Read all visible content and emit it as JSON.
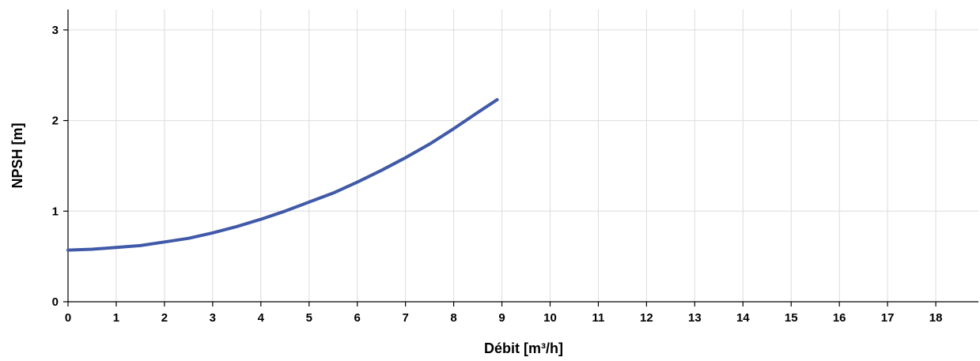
{
  "chart_data": {
    "type": "line",
    "title": "",
    "xlabel": "Débit [m³/h]",
    "ylabel": "NPSH [m]",
    "xlim": [
      0,
      19
    ],
    "ylim": [
      0,
      3.2
    ],
    "xticks": [
      0,
      1,
      2,
      3,
      4,
      5,
      6,
      7,
      8,
      9,
      10,
      11,
      12,
      13,
      14,
      15,
      16,
      17,
      18
    ],
    "yticks": [
      0,
      1,
      2,
      3
    ],
    "grid": true,
    "legend": "none",
    "series": [
      {
        "color": "#4059a8",
        "x": [
          0,
          0.5,
          1,
          1.5,
          2,
          2.5,
          3,
          3.5,
          4,
          4.5,
          5,
          5.5,
          6,
          6.5,
          7,
          7.5,
          8,
          8.5,
          8.9
        ],
        "y": [
          0.57,
          0.58,
          0.6,
          0.62,
          0.66,
          0.7,
          0.76,
          0.83,
          0.91,
          1.0,
          1.1,
          1.2,
          1.32,
          1.45,
          1.59,
          1.74,
          1.91,
          2.09,
          2.23
        ]
      }
    ]
  }
}
